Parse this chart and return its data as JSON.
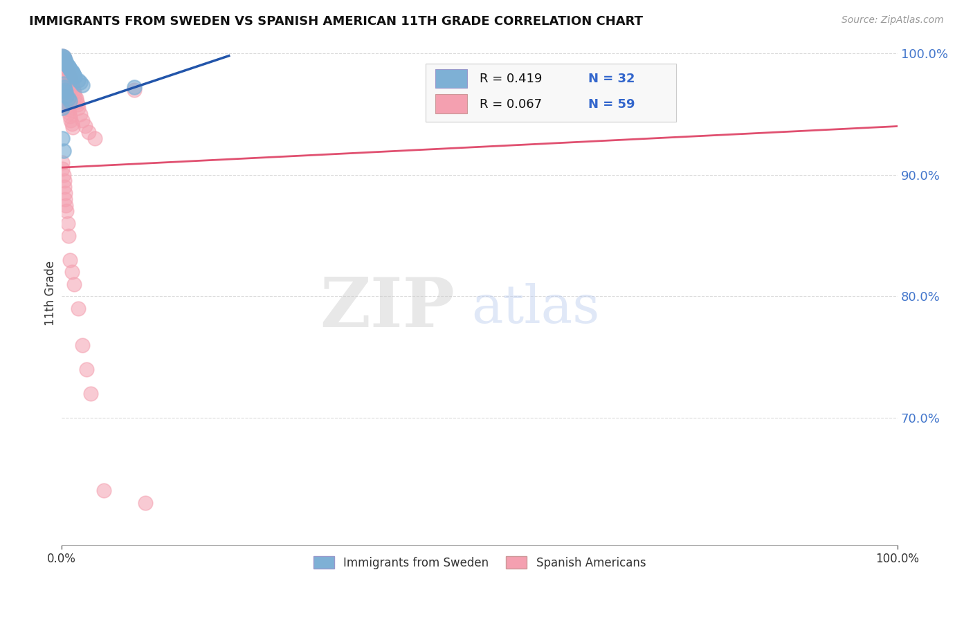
{
  "title": "IMMIGRANTS FROM SWEDEN VS SPANISH AMERICAN 11TH GRADE CORRELATION CHART",
  "source": "Source: ZipAtlas.com",
  "ylabel": "11th Grade",
  "xlim": [
    0.0,
    1.0
  ],
  "ylim": [
    0.595,
    1.01
  ],
  "yticks": [
    0.7,
    0.8,
    0.9,
    1.0
  ],
  "ytick_labels": [
    "70.0%",
    "80.0%",
    "90.0%",
    "100.0%"
  ],
  "xtick_labels": [
    "0.0%",
    "100.0%"
  ],
  "legend_R1": "R = 0.419",
  "legend_N1": "N = 32",
  "legend_R2": "R = 0.067",
  "legend_N2": "N = 59",
  "color_blue": "#7EB0D5",
  "color_pink": "#F4A0B0",
  "color_trendline_blue": "#2255AA",
  "color_trendline_pink": "#E05070",
  "watermark_ZIP": "ZIP",
  "watermark_atlas": "atlas",
  "watermark_color_ZIP": "#CCCCCC",
  "watermark_color_atlas": "#BBCCEE",
  "background_color": "#FFFFFF",
  "grid_color": "#CCCCCC",
  "blue_x": [
    0.001,
    0.001,
    0.002,
    0.002,
    0.002,
    0.003,
    0.003,
    0.004,
    0.004,
    0.005,
    0.005,
    0.006,
    0.006,
    0.007,
    0.008,
    0.008,
    0.009,
    0.01,
    0.01,
    0.011,
    0.012,
    0.013,
    0.014,
    0.015,
    0.016,
    0.02,
    0.022,
    0.025,
    0.087,
    0.001,
    0.001,
    0.002
  ],
  "blue_y": [
    0.998,
    0.995,
    0.997,
    0.993,
    0.975,
    0.996,
    0.972,
    0.994,
    0.97,
    0.993,
    0.968,
    0.991,
    0.965,
    0.99,
    0.989,
    0.963,
    0.988,
    0.987,
    0.961,
    0.986,
    0.985,
    0.984,
    0.983,
    0.982,
    0.981,
    0.978,
    0.976,
    0.974,
    0.972,
    0.955,
    0.93,
    0.92
  ],
  "pink_x": [
    0.001,
    0.001,
    0.002,
    0.002,
    0.003,
    0.003,
    0.004,
    0.004,
    0.005,
    0.005,
    0.006,
    0.006,
    0.007,
    0.007,
    0.008,
    0.008,
    0.009,
    0.009,
    0.01,
    0.01,
    0.011,
    0.011,
    0.012,
    0.012,
    0.013,
    0.013,
    0.014,
    0.015,
    0.016,
    0.017,
    0.018,
    0.019,
    0.02,
    0.022,
    0.025,
    0.028,
    0.032,
    0.04,
    0.087,
    0.001,
    0.001,
    0.002,
    0.003,
    0.003,
    0.004,
    0.004,
    0.005,
    0.006,
    0.007,
    0.008,
    0.01,
    0.012,
    0.015,
    0.02,
    0.025,
    0.03,
    0.035,
    0.05,
    0.1
  ],
  "pink_y": [
    0.998,
    0.98,
    0.997,
    0.975,
    0.996,
    0.97,
    0.993,
    0.966,
    0.99,
    0.963,
    0.988,
    0.96,
    0.986,
    0.957,
    0.984,
    0.954,
    0.982,
    0.951,
    0.98,
    0.948,
    0.978,
    0.945,
    0.975,
    0.942,
    0.972,
    0.939,
    0.97,
    0.968,
    0.965,
    0.963,
    0.96,
    0.958,
    0.955,
    0.95,
    0.945,
    0.94,
    0.935,
    0.93,
    0.97,
    0.91,
    0.905,
    0.9,
    0.895,
    0.89,
    0.885,
    0.88,
    0.875,
    0.87,
    0.86,
    0.85,
    0.83,
    0.82,
    0.81,
    0.79,
    0.76,
    0.74,
    0.72,
    0.64,
    0.63
  ],
  "blue_trend_x": [
    0.0,
    0.2
  ],
  "blue_trend_y": [
    0.952,
    0.998
  ],
  "pink_trend_x": [
    0.0,
    1.0
  ],
  "pink_trend_y": [
    0.906,
    0.94
  ]
}
